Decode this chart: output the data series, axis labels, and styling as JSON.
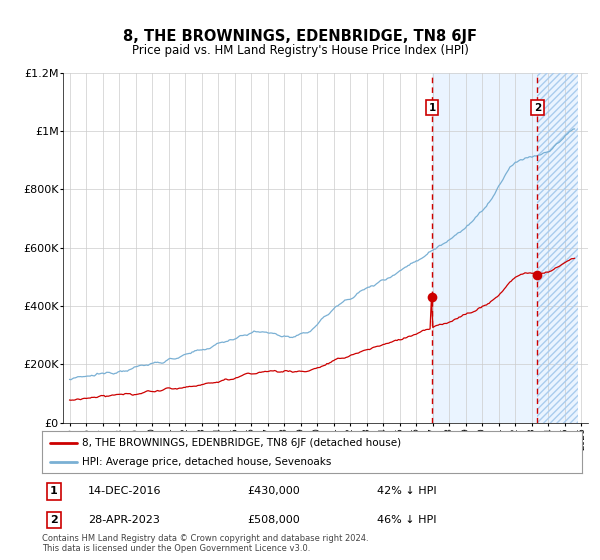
{
  "title": "8, THE BROWNINGS, EDENBRIDGE, TN8 6JF",
  "subtitle": "Price paid vs. HM Land Registry's House Price Index (HPI)",
  "legend_line1": "8, THE BROWNINGS, EDENBRIDGE, TN8 6JF (detached house)",
  "legend_line2": "HPI: Average price, detached house, Sevenoaks",
  "annotation1_date": "14-DEC-2016",
  "annotation1_price": "£430,000",
  "annotation1_hpi": "42% ↓ HPI",
  "annotation2_date": "28-APR-2023",
  "annotation2_price": "£508,000",
  "annotation2_hpi": "46% ↓ HPI",
  "footer": "Contains HM Land Registry data © Crown copyright and database right 2024.\nThis data is licensed under the Open Government Licence v3.0.",
  "ylim_max": 1200000,
  "hpi_color": "#7ab0d4",
  "price_color": "#cc0000",
  "vline_color": "#cc0000",
  "shade_color": "#ddeeff",
  "hatch_color": "#c8dcf0",
  "grid_color": "#cccccc",
  "annotation1_year": 2016.95,
  "annotation2_year": 2023.33,
  "yticks": [
    0,
    200000,
    400000,
    600000,
    800000,
    1000000,
    1200000
  ],
  "ylabels": [
    "£0",
    "£200K",
    "£400K",
    "£600K",
    "£800K",
    "£1M",
    "£1.2M"
  ],
  "xstart": 1995,
  "xend": 2026
}
